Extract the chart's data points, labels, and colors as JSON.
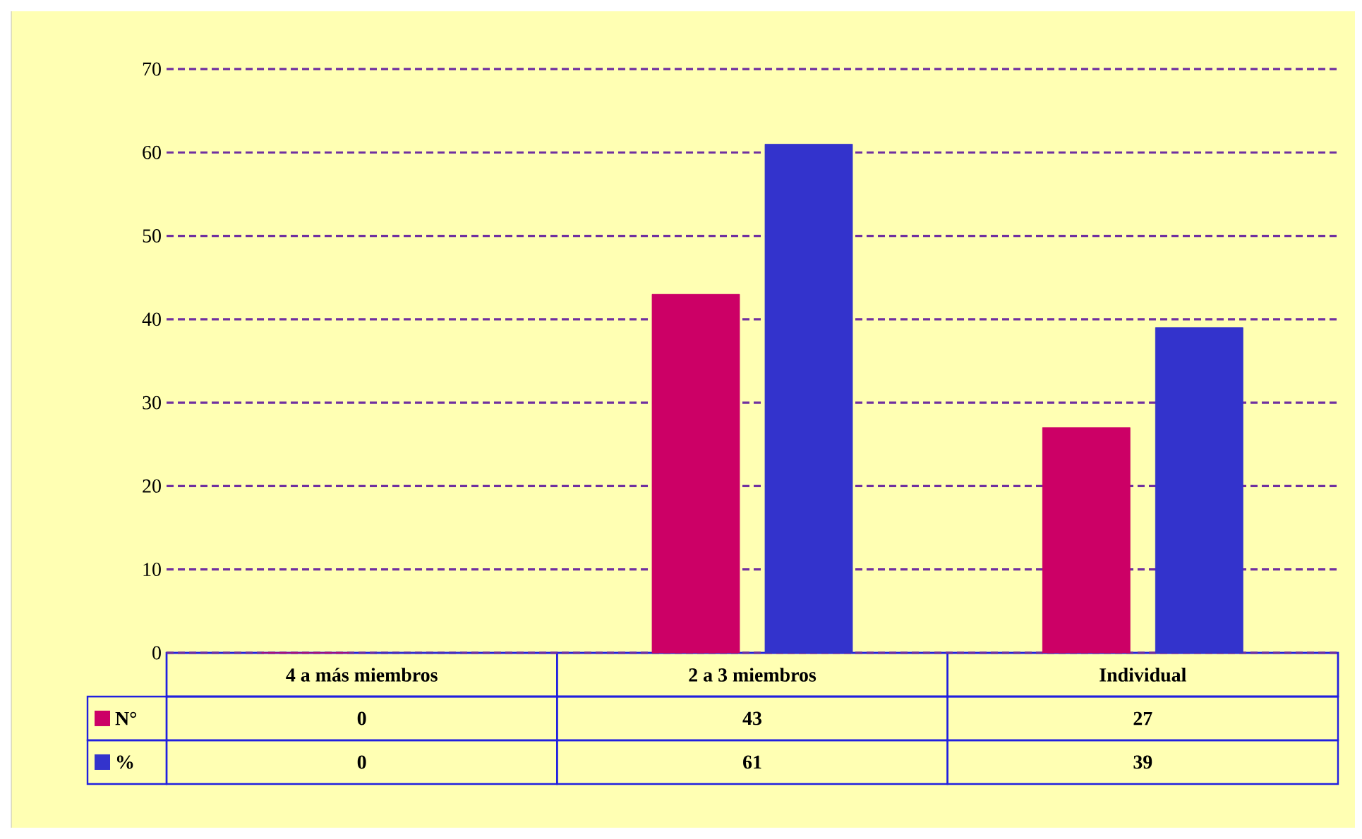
{
  "chart_data": {
    "type": "bar",
    "categories": [
      "4 a más miembros",
      "2 a 3 miembros",
      "Individual"
    ],
    "series": [
      {
        "name": "N°",
        "color": "#cc0066",
        "values": [
          0,
          43,
          27
        ]
      },
      {
        "name": "%",
        "color": "#3333cc",
        "values": [
          0,
          61,
          39
        ]
      }
    ],
    "ylim": [
      0,
      70
    ],
    "yticks": [
      0,
      10,
      20,
      30,
      40,
      50,
      60,
      70
    ],
    "grid": "y",
    "legend": "bottom",
    "data_labels": true
  }
}
